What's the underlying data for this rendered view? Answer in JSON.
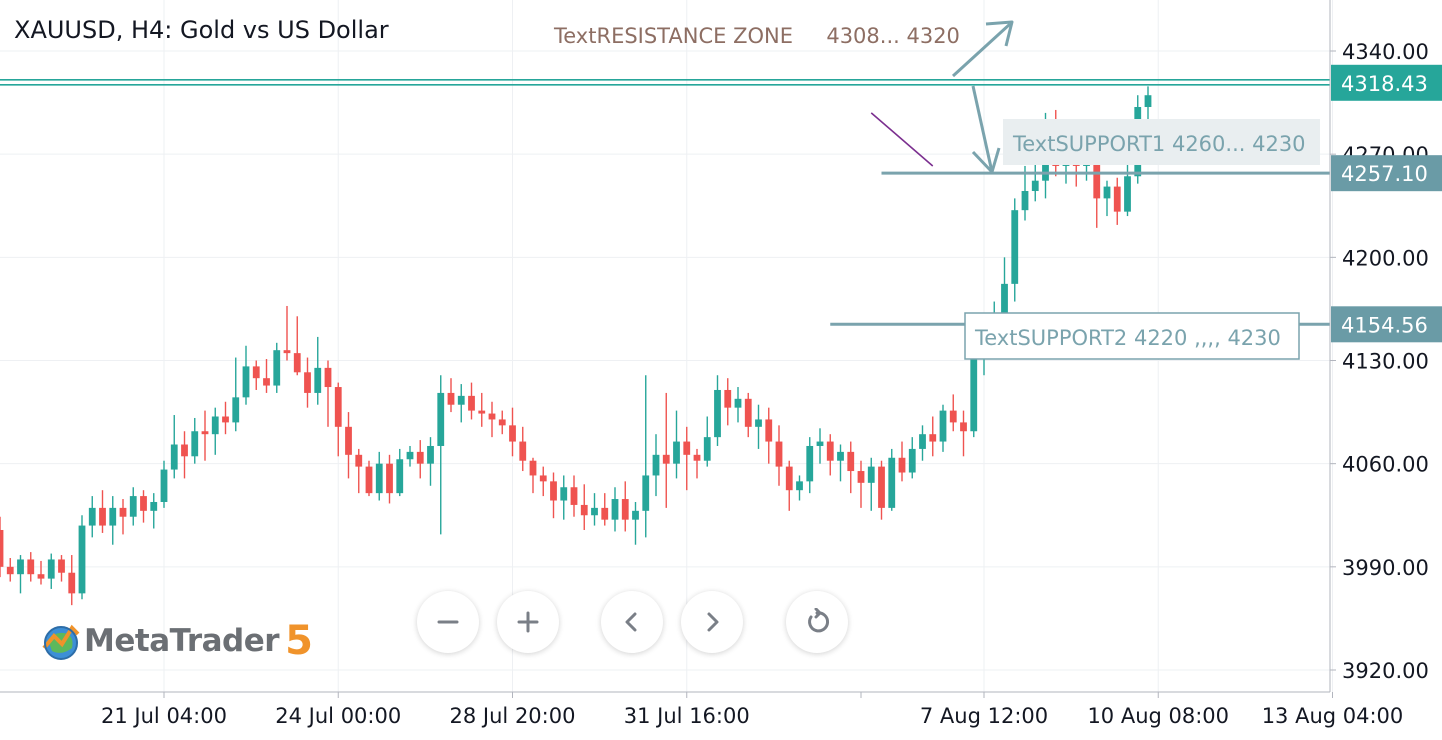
{
  "chart_title": "XAUUSD, H4: Gold vs US Dollar",
  "colors": {
    "up": "#26a69a",
    "down": "#ef5350",
    "annotation": "#7aa3ad",
    "label_bg": "#6a9ba6",
    "resistance_text": "#8d6e63",
    "grid": "#eef0f3"
  },
  "chart_data": {
    "type": "candlestick",
    "symbol": "XAUUSD",
    "timeframe": "H4",
    "y_range": [
      3900,
      4370
    ],
    "y_ticks": [
      4340,
      4270,
      4200,
      4130,
      4060,
      3990,
      3920
    ],
    "y_tick_labels": [
      "4340.00",
      "4270.00",
      "4200.00",
      "4130.00",
      "4060.00",
      "3990.00",
      "3920.00"
    ],
    "x_tick_labels": [
      "21 Jul 04:00",
      "24 Jul 00:00",
      "28 Jul 20:00",
      "31 Jul 16:00",
      "7 Aug 12:00",
      "10 Aug 08:00",
      "13 Aug 04:00"
    ],
    "x_tick_bar_index": [
      16,
      33,
      50,
      67,
      96,
      113,
      130
    ],
    "grid": true,
    "candles": [
      [
        4015,
        4024,
        3983,
        3990
      ],
      [
        3990,
        3996,
        3980,
        3985
      ],
      [
        3985,
        3998,
        3972,
        3995
      ],
      [
        3995,
        4000,
        3980,
        3985
      ],
      [
        3985,
        3994,
        3978,
        3982
      ],
      [
        3982,
        3999,
        3975,
        3995
      ],
      [
        3995,
        3998,
        3980,
        3986
      ],
      [
        3986,
        3998,
        3964,
        3972
      ],
      [
        3972,
        4025,
        3968,
        4018
      ],
      [
        4018,
        4038,
        4010,
        4030
      ],
      [
        4030,
        4042,
        4013,
        4018
      ],
      [
        4018,
        4038,
        4005,
        4030
      ],
      [
        4030,
        4036,
        4012,
        4024
      ],
      [
        4024,
        4044,
        4018,
        4038
      ],
      [
        4038,
        4042,
        4020,
        4028
      ],
      [
        4028,
        4040,
        4016,
        4034
      ],
      [
        4034,
        4062,
        4030,
        4056
      ],
      [
        4056,
        4093,
        4050,
        4073
      ],
      [
        4073,
        4082,
        4050,
        4065
      ],
      [
        4065,
        4091,
        4060,
        4082
      ],
      [
        4082,
        4096,
        4062,
        4080
      ],
      [
        4080,
        4098,
        4066,
        4092
      ],
      [
        4092,
        4102,
        4080,
        4088
      ],
      [
        4088,
        4132,
        4082,
        4105
      ],
      [
        4105,
        4140,
        4100,
        4126
      ],
      [
        4126,
        4130,
        4110,
        4118
      ],
      [
        4118,
        4131,
        4108,
        4113
      ],
      [
        4113,
        4142,
        4108,
        4137
      ],
      [
        4137,
        4167,
        4130,
        4135
      ],
      [
        4135,
        4160,
        4120,
        4122
      ],
      [
        4122,
        4132,
        4098,
        4108
      ],
      [
        4108,
        4146,
        4100,
        4125
      ],
      [
        4125,
        4130,
        4085,
        4112
      ],
      [
        4112,
        4115,
        4065,
        4085
      ],
      [
        4085,
        4095,
        4050,
        4066
      ],
      [
        4066,
        4070,
        4040,
        4058
      ],
      [
        4058,
        4062,
        4038,
        4040
      ],
      [
        4040,
        4068,
        4035,
        4060
      ],
      [
        4060,
        4066,
        4033,
        4040
      ],
      [
        4040,
        4070,
        4038,
        4063
      ],
      [
        4063,
        4072,
        4058,
        4068
      ],
      [
        4068,
        4076,
        4050,
        4060
      ],
      [
        4060,
        4078,
        4045,
        4072
      ],
      [
        4072,
        4120,
        4012,
        4108
      ],
      [
        4108,
        4118,
        4095,
        4100
      ],
      [
        4100,
        4114,
        4088,
        4106
      ],
      [
        4106,
        4115,
        4090,
        4096
      ],
      [
        4096,
        4108,
        4085,
        4094
      ],
      [
        4094,
        4102,
        4078,
        4090
      ],
      [
        4090,
        4096,
        4080,
        4086
      ],
      [
        4086,
        4098,
        4065,
        4075
      ],
      [
        4075,
        4085,
        4055,
        4062
      ],
      [
        4062,
        4064,
        4040,
        4052
      ],
      [
        4052,
        4058,
        4038,
        4048
      ],
      [
        4048,
        4054,
        4023,
        4035
      ],
      [
        4035,
        4052,
        4022,
        4044
      ],
      [
        4044,
        4052,
        4024,
        4032
      ],
      [
        4032,
        4046,
        4015,
        4025
      ],
      [
        4025,
        4040,
        4018,
        4030
      ],
      [
        4030,
        4040,
        4018,
        4022
      ],
      [
        4022,
        4044,
        4014,
        4036
      ],
      [
        4036,
        4048,
        4014,
        4022
      ],
      [
        4022,
        4034,
        4005,
        4028
      ],
      [
        4028,
        4120,
        4010,
        4052
      ],
      [
        4052,
        4080,
        4038,
        4066
      ],
      [
        4066,
        4108,
        4030,
        4060
      ],
      [
        4060,
        4096,
        4050,
        4075
      ],
      [
        4075,
        4085,
        4042,
        4066
      ],
      [
        4066,
        4070,
        4050,
        4062
      ],
      [
        4062,
        4092,
        4058,
        4078
      ],
      [
        4078,
        4120,
        4072,
        4110
      ],
      [
        4110,
        4118,
        4086,
        4098
      ],
      [
        4098,
        4112,
        4088,
        4104
      ],
      [
        4104,
        4108,
        4078,
        4085
      ],
      [
        4085,
        4100,
        4070,
        4090
      ],
      [
        4090,
        4098,
        4060,
        4075
      ],
      [
        4075,
        4086,
        4045,
        4058
      ],
      [
        4058,
        4062,
        4028,
        4042
      ],
      [
        4042,
        4052,
        4035,
        4048
      ],
      [
        4048,
        4078,
        4040,
        4072
      ],
      [
        4072,
        4084,
        4060,
        4075
      ],
      [
        4075,
        4080,
        4052,
        4062
      ],
      [
        4062,
        4073,
        4048,
        4068
      ],
      [
        4068,
        4075,
        4040,
        4055
      ],
      [
        4055,
        4062,
        4030,
        4047
      ],
      [
        4047,
        4064,
        4028,
        4058
      ],
      [
        4058,
        4062,
        4022,
        4030
      ],
      [
        4030,
        4070,
        4028,
        4064
      ],
      [
        4064,
        4075,
        4048,
        4054
      ],
      [
        4054,
        4078,
        4050,
        4070
      ],
      [
        4070,
        4086,
        4062,
        4080
      ],
      [
        4080,
        4092,
        4065,
        4075
      ],
      [
        4075,
        4100,
        4068,
        4096
      ],
      [
        4096,
        4107,
        4082,
        4088
      ],
      [
        4088,
        4096,
        4065,
        4082
      ],
      [
        4082,
        4148,
        4078,
        4140
      ],
      [
        4140,
        4150,
        4120,
        4150
      ],
      [
        4150,
        4170,
        4138,
        4162
      ],
      [
        4162,
        4200,
        4145,
        4182
      ],
      [
        4182,
        4240,
        4170,
        4232
      ],
      [
        4232,
        4262,
        4225,
        4245
      ],
      [
        4245,
        4270,
        4238,
        4252
      ],
      [
        4252,
        4298,
        4240,
        4292
      ],
      [
        4292,
        4300,
        4255,
        4262
      ],
      [
        4262,
        4282,
        4250,
        4276
      ],
      [
        4276,
        4282,
        4248,
        4262
      ],
      [
        4262,
        4284,
        4252,
        4274
      ],
      [
        4274,
        4280,
        4220,
        4240
      ],
      [
        4240,
        4252,
        4228,
        4248
      ],
      [
        4248,
        4254,
        4222,
        4231
      ],
      [
        4231,
        4265,
        4228,
        4255
      ],
      [
        4255,
        4310,
        4250,
        4302
      ],
      [
        4302,
        4316,
        4288,
        4310
      ]
    ],
    "resistance": {
      "price": 4318.43,
      "label": "4318.43"
    },
    "support1": {
      "price": 4257.1,
      "label": "4257.10"
    },
    "support2": {
      "price": 4154.56,
      "label": "4154.56"
    },
    "annotations": {
      "resistance_text": "TextRESISTANCE ZONE     4308... 4320",
      "support1_text": "TextSUPPORT1 4260... 4230",
      "support2_text": "TextSUPPORT2 4220 ,,,, 4230"
    }
  },
  "logo": {
    "word": "MetaTrader",
    "number": "5"
  },
  "controls": [
    {
      "name": "zoom-out-button",
      "icon": "minus-icon"
    },
    {
      "name": "zoom-in-button",
      "icon": "plus-icon"
    },
    {
      "name": "scroll-left-button",
      "icon": "chevron-left-icon"
    },
    {
      "name": "scroll-right-button",
      "icon": "chevron-right-icon"
    },
    {
      "name": "reset-chart-button",
      "icon": "rotate-icon"
    }
  ]
}
